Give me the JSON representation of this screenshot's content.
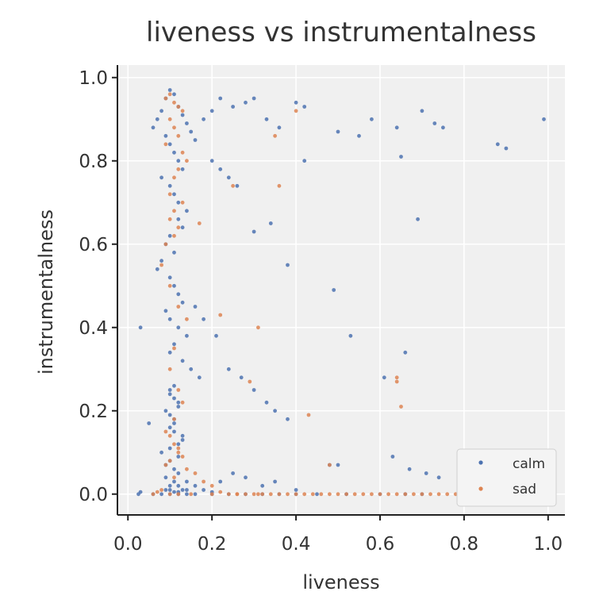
{
  "chart_data": {
    "type": "scatter",
    "title": "liveness vs instrumentalness",
    "xlabel": "liveness",
    "ylabel": "instrumentalness",
    "xlim": [
      -0.025,
      1.04
    ],
    "ylim": [
      -0.05,
      1.03
    ],
    "xticks": [
      0.0,
      0.2,
      0.4,
      0.6,
      0.8,
      1.0
    ],
    "yticks": [
      0.0,
      0.2,
      0.4,
      0.6,
      0.8,
      1.0
    ],
    "xtick_labels": [
      "0.0",
      "0.2",
      "0.4",
      "0.6",
      "0.8",
      "1.0"
    ],
    "ytick_labels": [
      "0.0",
      "0.2",
      "0.4",
      "0.6",
      "0.8",
      "1.0"
    ],
    "grid": true,
    "background": "#f0f0f0",
    "legend": {
      "position": "lower-right",
      "entries": [
        "calm",
        "sad"
      ]
    },
    "series": [
      {
        "name": "calm",
        "color": "#4c72b0",
        "x": [
          0.03,
          0.05,
          0.06,
          0.07,
          0.08,
          0.09,
          0.1,
          0.11,
          0.12,
          0.13,
          0.14,
          0.15,
          0.09,
          0.1,
          0.11,
          0.12,
          0.13,
          0.08,
          0.1,
          0.11,
          0.12,
          0.14,
          0.16,
          0.18,
          0.2,
          0.22,
          0.25,
          0.28,
          0.3,
          0.33,
          0.36,
          0.4,
          0.42,
          0.5,
          0.55,
          0.58,
          0.64,
          0.7,
          0.73,
          0.75,
          0.88,
          0.9,
          0.99,
          0.12,
          0.13,
          0.1,
          0.09,
          0.11,
          0.08,
          0.07,
          0.1,
          0.11,
          0.12,
          0.13,
          0.09,
          0.1,
          0.12,
          0.14,
          0.11,
          0.1,
          0.13,
          0.15,
          0.17,
          0.2,
          0.22,
          0.24,
          0.26,
          0.3,
          0.34,
          0.38,
          0.42,
          0.49,
          0.53,
          0.69,
          0.65,
          0.61,
          0.66,
          0.11,
          0.1,
          0.12,
          0.09,
          0.11,
          0.1,
          0.13,
          0.12,
          0.08,
          0.1,
          0.11,
          0.12,
          0.09,
          0.14,
          0.16,
          0.18,
          0.21,
          0.24,
          0.27,
          0.3,
          0.33,
          0.35,
          0.38,
          0.11,
          0.1,
          0.12,
          0.09,
          0.13,
          0.11,
          0.1,
          0.12,
          0.14,
          0.16,
          0.18,
          0.2,
          0.22,
          0.25,
          0.28,
          0.32,
          0.35,
          0.4,
          0.48,
          0.5,
          0.63,
          0.67,
          0.71,
          0.74,
          0.06,
          0.08,
          0.1,
          0.12,
          0.14,
          0.16,
          0.2,
          0.24,
          0.28,
          0.32,
          0.36,
          0.4,
          0.45,
          0.52,
          0.6,
          0.66,
          0.7,
          0.03,
          0.025,
          0.11,
          0.1,
          0.12,
          0.09,
          0.13,
          0.11,
          0.1,
          0.12,
          0.11,
          0.1
        ],
        "y": [
          0.4,
          0.17,
          0.88,
          0.9,
          0.92,
          0.95,
          0.97,
          0.96,
          0.93,
          0.91,
          0.89,
          0.87,
          0.86,
          0.84,
          0.82,
          0.8,
          0.78,
          0.76,
          0.74,
          0.72,
          0.7,
          0.68,
          0.85,
          0.9,
          0.92,
          0.95,
          0.93,
          0.94,
          0.95,
          0.9,
          0.88,
          0.94,
          0.93,
          0.87,
          0.86,
          0.9,
          0.88,
          0.92,
          0.89,
          0.88,
          0.84,
          0.83,
          0.9,
          0.66,
          0.64,
          0.62,
          0.6,
          0.58,
          0.56,
          0.54,
          0.52,
          0.5,
          0.48,
          0.46,
          0.44,
          0.42,
          0.4,
          0.38,
          0.36,
          0.34,
          0.32,
          0.3,
          0.28,
          0.8,
          0.78,
          0.76,
          0.74,
          0.63,
          0.65,
          0.55,
          0.8,
          0.49,
          0.38,
          0.66,
          0.81,
          0.28,
          0.34,
          0.26,
          0.24,
          0.22,
          0.2,
          0.18,
          0.16,
          0.14,
          0.12,
          0.1,
          0.08,
          0.06,
          0.05,
          0.04,
          0.03,
          0.45,
          0.42,
          0.38,
          0.3,
          0.28,
          0.25,
          0.22,
          0.2,
          0.18,
          0.03,
          0.02,
          0.02,
          0.01,
          0.01,
          0.005,
          0.01,
          0.005,
          0.01,
          0.02,
          0.01,
          0.005,
          0.03,
          0.05,
          0.04,
          0.02,
          0.03,
          0.01,
          0.07,
          0.07,
          0.09,
          0.06,
          0.05,
          0.04,
          0.0,
          0.0,
          0.0,
          0.0,
          0.0,
          0.0,
          0.0,
          0.0,
          0.0,
          0.0,
          0.0,
          0.0,
          0.0,
          0.0,
          0.0,
          0.0,
          0.0,
          0.005,
          0.0,
          0.15,
          0.11,
          0.09,
          0.07,
          0.13,
          0.17,
          0.19,
          0.21,
          0.23,
          0.25
        ]
      },
      {
        "name": "sad",
        "color": "#dd8452",
        "x": [
          0.09,
          0.1,
          0.11,
          0.12,
          0.13,
          0.1,
          0.11,
          0.12,
          0.09,
          0.13,
          0.14,
          0.12,
          0.11,
          0.1,
          0.13,
          0.11,
          0.1,
          0.12,
          0.11,
          0.09,
          0.08,
          0.1,
          0.12,
          0.14,
          0.17,
          0.25,
          0.35,
          0.36,
          0.4,
          0.31,
          0.22,
          0.29,
          0.64,
          0.64,
          0.65,
          0.43,
          0.48,
          0.11,
          0.1,
          0.12,
          0.13,
          0.09,
          0.11,
          0.12,
          0.1,
          0.14,
          0.16,
          0.18,
          0.2,
          0.22,
          0.24,
          0.26,
          0.28,
          0.3,
          0.32,
          0.34,
          0.36,
          0.38,
          0.4,
          0.42,
          0.44,
          0.46,
          0.48,
          0.5,
          0.52,
          0.54,
          0.56,
          0.58,
          0.6,
          0.62,
          0.64,
          0.66,
          0.68,
          0.7,
          0.72,
          0.74,
          0.76,
          0.78,
          0.8,
          0.85,
          0.89,
          0.06,
          0.07,
          0.08,
          0.1,
          0.12,
          0.15,
          0.2,
          0.26,
          0.31,
          0.11,
          0.1,
          0.12,
          0.13,
          0.09,
          0.11
        ],
        "y": [
          0.95,
          0.96,
          0.94,
          0.93,
          0.92,
          0.9,
          0.88,
          0.86,
          0.84,
          0.82,
          0.8,
          0.78,
          0.76,
          0.72,
          0.7,
          0.68,
          0.66,
          0.64,
          0.62,
          0.6,
          0.55,
          0.5,
          0.45,
          0.42,
          0.65,
          0.74,
          0.86,
          0.74,
          0.92,
          0.4,
          0.43,
          0.27,
          0.28,
          0.27,
          0.21,
          0.19,
          0.07,
          0.35,
          0.3,
          0.25,
          0.22,
          0.15,
          0.12,
          0.1,
          0.08,
          0.06,
          0.05,
          0.03,
          0.02,
          0.005,
          0.0,
          0.0,
          0.0,
          0.0,
          0.0,
          0.0,
          0.0,
          0.0,
          0.0,
          0.0,
          0.0,
          0.0,
          0.0,
          0.0,
          0.0,
          0.0,
          0.0,
          0.0,
          0.0,
          0.0,
          0.0,
          0.0,
          0.0,
          0.0,
          0.0,
          0.0,
          0.0,
          0.0,
          0.0,
          0.0,
          0.02,
          0.0,
          0.005,
          0.01,
          0.0,
          0.0,
          0.0,
          0.0,
          0.0,
          0.0,
          0.18,
          0.14,
          0.11,
          0.09,
          0.07,
          0.04
        ]
      }
    ]
  }
}
